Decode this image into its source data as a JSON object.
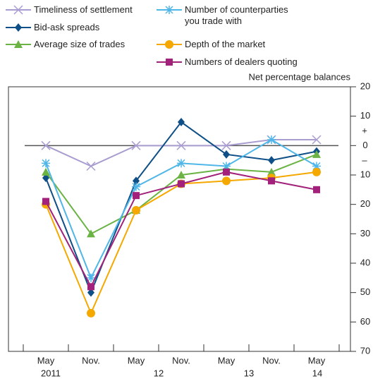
{
  "chart_data": {
    "type": "line",
    "y_axis_label": "Net percentage balances",
    "annotations": [
      "+",
      "–"
    ],
    "categories": [
      "May",
      "Nov.",
      "May",
      "Nov.",
      "May",
      "Nov.",
      "May"
    ],
    "x_groups": [
      "2011",
      "12",
      "13",
      "14"
    ],
    "ylim": [
      -70,
      20
    ],
    "yticks": [
      20,
      10,
      0,
      {
        "value": -10,
        "label": "10"
      },
      {
        "value": -20,
        "label": "20"
      },
      {
        "value": -30,
        "label": "30"
      },
      {
        "value": -40,
        "label": "40"
      },
      {
        "value": -50,
        "label": "50"
      },
      {
        "value": -60,
        "label": "60"
      },
      {
        "value": -70,
        "label": "70"
      }
    ],
    "series": [
      {
        "name": "Timeliness of settlement",
        "color": "#a99cd0",
        "marker": "x",
        "values": [
          0,
          -7,
          0,
          0,
          0,
          2,
          2
        ]
      },
      {
        "name": "Bid-ask spreads",
        "color": "#0d4f86",
        "marker": "diamond",
        "values": [
          -11,
          -50,
          -12,
          8,
          -3,
          -5,
          -2
        ]
      },
      {
        "name": "Average size of trades",
        "color": "#6ab344",
        "marker": "triangle",
        "values": [
          -9,
          -30,
          -22,
          -10,
          -8,
          -9,
          -3
        ]
      },
      {
        "name": "Number of counterparties\nyou trade with",
        "color": "#4fb6e8",
        "marker": "asterisk",
        "values": [
          -6,
          -45,
          -14,
          -6,
          -7,
          2,
          -7
        ]
      },
      {
        "name": "Depth of the market",
        "color": "#f5a800",
        "marker": "circle",
        "values": [
          -20,
          -57,
          -22,
          -13,
          -12,
          -11,
          -9
        ]
      },
      {
        "name": "Numbers of dealers quoting",
        "color": "#a2217a",
        "marker": "square",
        "values": [
          -19,
          -48,
          -17,
          -13,
          -9,
          -12,
          -15
        ]
      }
    ]
  }
}
